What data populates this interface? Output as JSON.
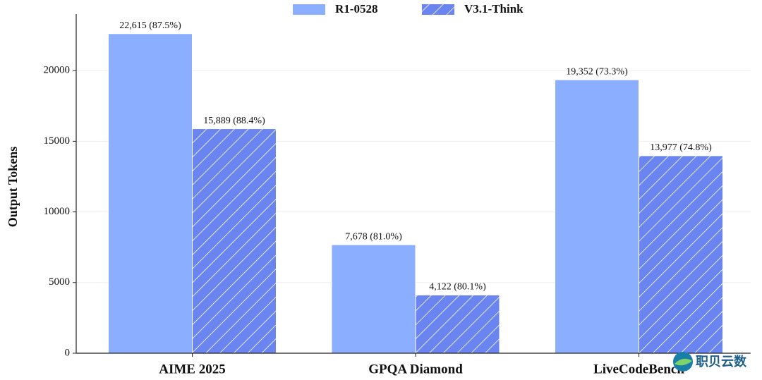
{
  "chart_data": {
    "type": "bar",
    "y_label": "Output Tokens",
    "categories": [
      "AIME 2025",
      "GPQA Diamond",
      "LiveCodeBench"
    ],
    "series": [
      {
        "name": "R1-0528",
        "color": "#8caeff",
        "hatch": false,
        "values": [
          22615,
          7678,
          19352
        ],
        "value_labels": [
          "22,615 (87.5%)",
          "7,678 (81.0%)",
          "19,352 (73.3%)"
        ]
      },
      {
        "name": "V3.1-Think",
        "color": "#6a84f0",
        "hatch": true,
        "values": [
          15889,
          4122,
          13977
        ],
        "value_labels": [
          "15,889 (88.4%)",
          "4,122 (80.1%)",
          "13,977 (74.8%)"
        ]
      }
    ],
    "ylim": [
      0,
      24000
    ],
    "yticks": [
      0,
      5000,
      10000,
      15000,
      20000
    ],
    "grid": true,
    "legend": "top"
  },
  "watermark": "职贝云数"
}
